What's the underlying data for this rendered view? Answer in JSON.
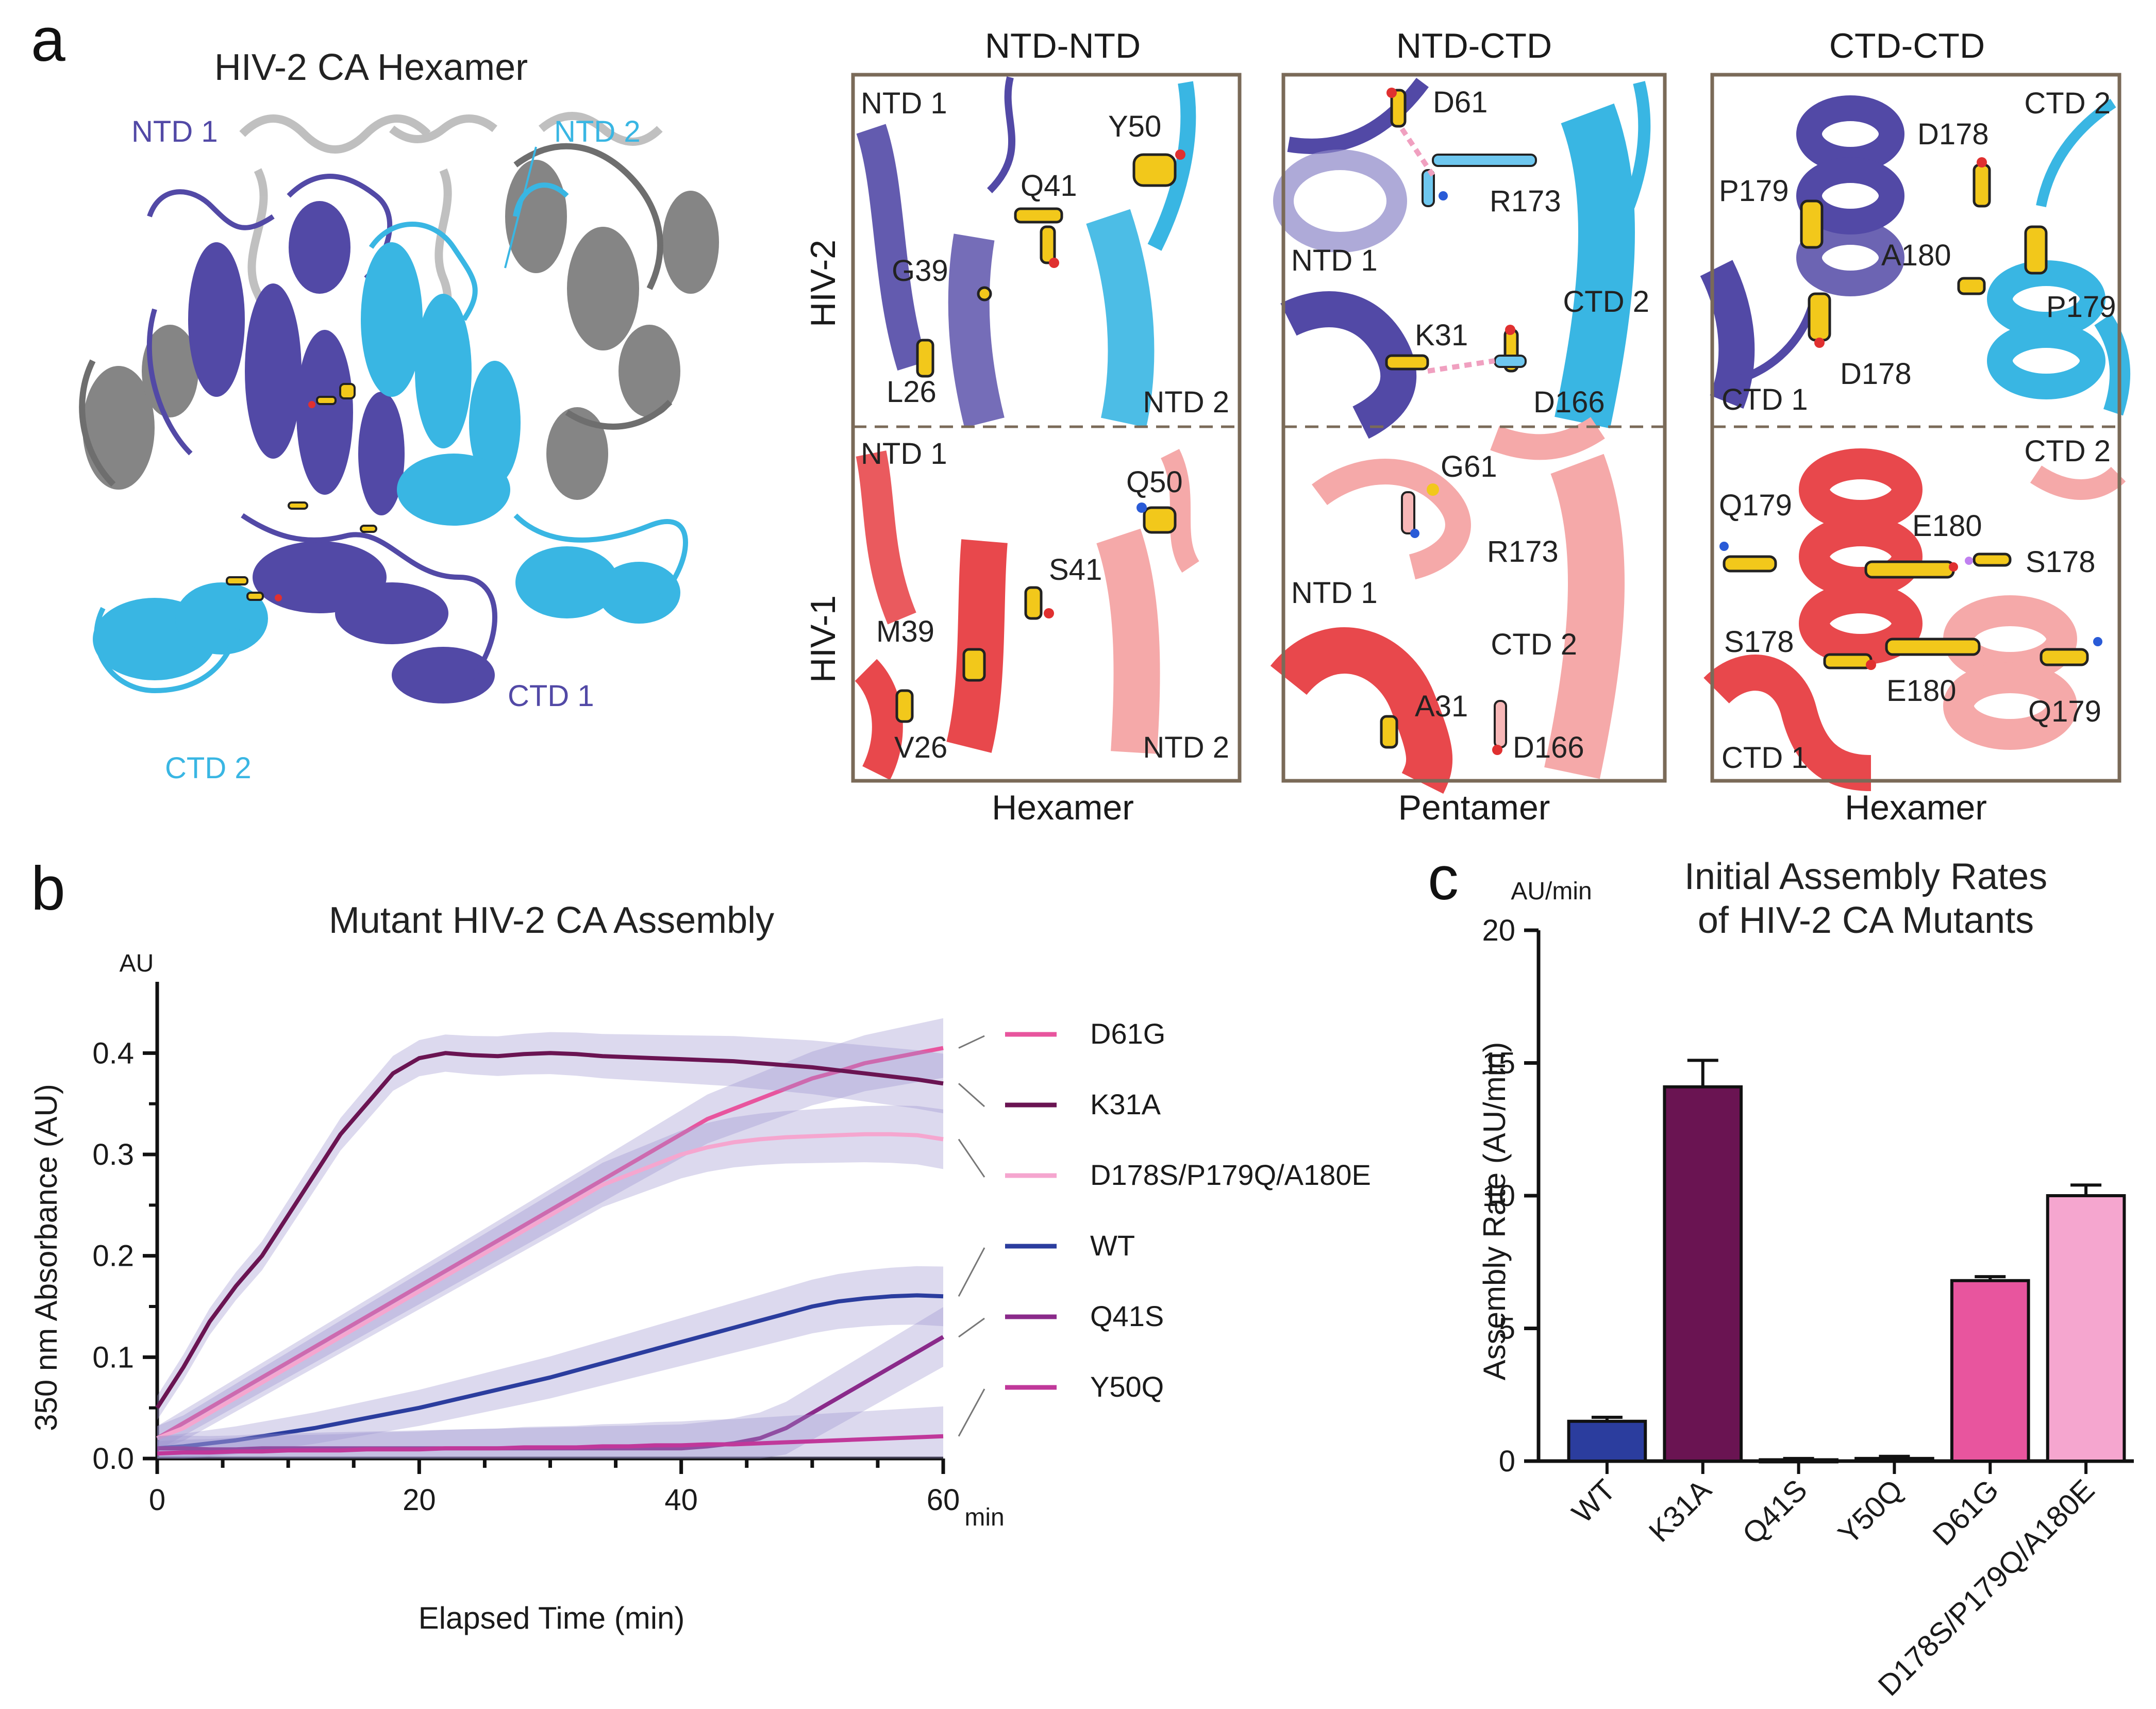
{
  "figure": {
    "panel_a": {
      "letter": "a",
      "title": "HIV-2 CA Hexamer",
      "labels": {
        "ntd1": "NTD 1",
        "ntd2": "NTD 2",
        "ctd1": "CTD 1",
        "ctd2": "CTD 2"
      },
      "row_labels": {
        "hiv2": "HIV-2",
        "hiv1": "HIV-1"
      },
      "interfaces": [
        {
          "header": "NTD-NTD",
          "footer": "Hexamer",
          "hiv2": [
            "NTD 1",
            "Y50",
            "Q41",
            "G39",
            "L26",
            "NTD 2"
          ],
          "hiv1": [
            "NTD 1",
            "Q50",
            "S41",
            "M39",
            "V26",
            "NTD 2"
          ]
        },
        {
          "header": "NTD-CTD",
          "footer": "Pentamer",
          "hiv2": [
            "D61",
            "R173",
            "NTD 1",
            "CTD 2",
            "K31",
            "D166"
          ],
          "hiv1": [
            "G61",
            "R173",
            "NTD 1",
            "CTD 2",
            "A31",
            "D166"
          ]
        },
        {
          "header": "CTD-CTD",
          "footer": "Hexamer",
          "hiv2": [
            "CTD 2",
            "D178",
            "P179",
            "A180",
            "P179",
            "D178",
            "CTD 1"
          ],
          "hiv1": [
            "CTD 2",
            "Q179",
            "E180",
            "S178",
            "S178",
            "E180",
            "Q179",
            "CTD 1"
          ]
        }
      ],
      "colors": {
        "hiv2_a": "#5249a6",
        "hiv2_b": "#39b6e3",
        "hiv1_a": "#e8484c",
        "hiv1_b": "#f5a9a9",
        "frame": "#7a6a58"
      }
    },
    "panel_b": {
      "letter": "b",
      "unit_top": "AU",
      "unit_right": "min"
    },
    "panel_c": {
      "letter": "c",
      "unit_top": "AU/min"
    }
  },
  "chart_data": [
    {
      "type": "line",
      "title": "Mutant HIV-2 CA Assembly",
      "xlabel": "Elapsed Time (min)",
      "ylabel": "350 nm Absorbance (AU)",
      "xlim": [
        0,
        60
      ],
      "ylim": [
        0,
        0.45
      ],
      "x_ticks": [
        0,
        20,
        40,
        60
      ],
      "y_ticks": [
        0.0,
        0.1,
        0.2,
        0.3,
        0.4
      ],
      "y_tick_labels": [
        "0.0",
        "0.1",
        "0.2",
        "0.3",
        "0.4"
      ],
      "legend_position": "right",
      "x": [
        0,
        2,
        4,
        6,
        8,
        10,
        12,
        14,
        16,
        18,
        20,
        22,
        24,
        26,
        28,
        30,
        32,
        34,
        36,
        38,
        40,
        42,
        44,
        46,
        48,
        50,
        52,
        54,
        56,
        58,
        60
      ],
      "series": [
        {
          "name": "D61G",
          "color": "#e8559e",
          "values": [
            0.02,
            0.035,
            0.05,
            0.065,
            0.08,
            0.095,
            0.11,
            0.125,
            0.14,
            0.155,
            0.17,
            0.185,
            0.2,
            0.215,
            0.23,
            0.245,
            0.26,
            0.275,
            0.29,
            0.305,
            0.32,
            0.335,
            0.345,
            0.355,
            0.365,
            0.375,
            0.382,
            0.39,
            0.395,
            0.4,
            0.405
          ]
        },
        {
          "name": "K31A",
          "color": "#6a1452",
          "values": [
            0.05,
            0.09,
            0.135,
            0.17,
            0.2,
            0.24,
            0.28,
            0.32,
            0.35,
            0.38,
            0.395,
            0.4,
            0.398,
            0.397,
            0.399,
            0.4,
            0.399,
            0.397,
            0.396,
            0.395,
            0.394,
            0.393,
            0.392,
            0.39,
            0.388,
            0.386,
            0.383,
            0.38,
            0.377,
            0.374,
            0.37
          ]
        },
        {
          "name": "D178S/P179Q/A180E",
          "color": "#f5a6cf",
          "values": [
            0.02,
            0.03,
            0.045,
            0.06,
            0.075,
            0.09,
            0.105,
            0.12,
            0.135,
            0.15,
            0.165,
            0.18,
            0.195,
            0.21,
            0.225,
            0.24,
            0.255,
            0.27,
            0.28,
            0.29,
            0.3,
            0.307,
            0.312,
            0.315,
            0.317,
            0.318,
            0.319,
            0.32,
            0.32,
            0.319,
            0.315
          ]
        },
        {
          "name": "WT",
          "color": "#2b3d9e",
          "values": [
            0.01,
            0.012,
            0.015,
            0.018,
            0.022,
            0.026,
            0.03,
            0.035,
            0.04,
            0.045,
            0.05,
            0.056,
            0.062,
            0.068,
            0.074,
            0.08,
            0.087,
            0.094,
            0.101,
            0.108,
            0.115,
            0.122,
            0.129,
            0.136,
            0.143,
            0.15,
            0.155,
            0.158,
            0.16,
            0.161,
            0.16
          ]
        },
        {
          "name": "Q41S",
          "color": "#8a2a8a",
          "values": [
            0.01,
            0.01,
            0.009,
            0.009,
            0.01,
            0.01,
            0.01,
            0.01,
            0.01,
            0.01,
            0.01,
            0.01,
            0.01,
            0.01,
            0.01,
            0.01,
            0.01,
            0.01,
            0.01,
            0.01,
            0.01,
            0.012,
            0.015,
            0.02,
            0.03,
            0.045,
            0.06,
            0.075,
            0.09,
            0.105,
            0.12
          ]
        },
        {
          "name": "Y50Q",
          "color": "#c0389a",
          "values": [
            0.005,
            0.006,
            0.006,
            0.007,
            0.007,
            0.008,
            0.008,
            0.008,
            0.009,
            0.009,
            0.009,
            0.01,
            0.01,
            0.01,
            0.011,
            0.011,
            0.011,
            0.012,
            0.012,
            0.013,
            0.013,
            0.014,
            0.014,
            0.015,
            0.016,
            0.017,
            0.018,
            0.019,
            0.02,
            0.021,
            0.022
          ]
        }
      ]
    },
    {
      "type": "bar",
      "title": "Initial Assembly Rates of HIV-2 CA Mutants",
      "title_lines": [
        "Initial Assembly Rates",
        "of HIV-2 CA Mutants"
      ],
      "xlabel": "",
      "ylabel": "Assembly Rate (AU/min)",
      "ylim": [
        0,
        20
      ],
      "y_ticks": [
        0,
        5,
        10,
        15,
        20
      ],
      "categories": [
        "WT",
        "K31A",
        "Q41S",
        "Y50Q",
        "D61G",
        "D178S/P179Q/A180E"
      ],
      "values": [
        1.5,
        14.1,
        0.05,
        0.1,
        6.8,
        10.0
      ],
      "errors": [
        0.15,
        1.0,
        0.05,
        0.08,
        0.15,
        0.4
      ],
      "colors": [
        "#2b3d9e",
        "#6a1452",
        "#8a2a8a",
        "#c0389a",
        "#e8559e",
        "#f5a6cf"
      ]
    }
  ]
}
